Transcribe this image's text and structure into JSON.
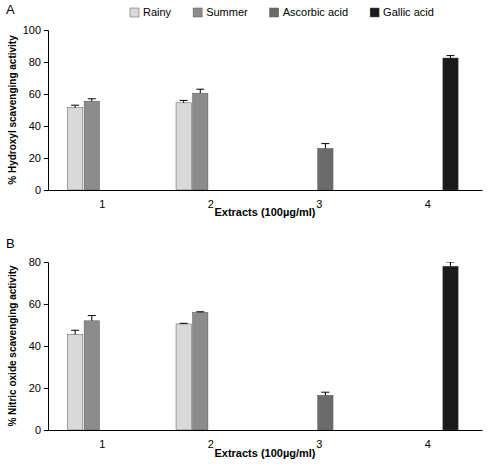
{
  "chart_data": [
    {
      "type": "bar",
      "title": "A",
      "x_label": "Extracts (100µg/ml)",
      "y_label": "% Hydroxyl scavenging activity",
      "categories": [
        "1",
        "2",
        "3",
        "4"
      ],
      "series": [
        {
          "name": "Rainy",
          "color": "#d9d9d9",
          "values": [
            51.5,
            54.5,
            null,
            null
          ],
          "errors": [
            1.5,
            1.5,
            null,
            null
          ]
        },
        {
          "name": "Summer",
          "color": "#8c8c8c",
          "values": [
            55.5,
            60.5,
            null,
            null
          ],
          "errors": [
            1.5,
            2.5,
            null,
            null
          ]
        },
        {
          "name": "Ascorbic acid",
          "color": "#6b6b6b",
          "values": [
            null,
            null,
            26,
            null
          ],
          "errors": [
            null,
            null,
            3,
            null
          ]
        },
        {
          "name": "Gallic acid",
          "color": "#1a1a1a",
          "values": [
            null,
            null,
            null,
            82.5
          ],
          "errors": [
            null,
            null,
            null,
            1.5
          ]
        }
      ],
      "ylim": [
        0,
        100
      ],
      "yticks": [
        0,
        20,
        40,
        60,
        80,
        100
      ],
      "grid": false,
      "legend": "top"
    },
    {
      "type": "bar",
      "title": "B",
      "x_label": "Extracts (100µg/ml)",
      "y_label": "% Nitric oxide scavenging activity",
      "categories": [
        "1",
        "2",
        "3",
        "4"
      ],
      "series": [
        {
          "color": "#d9d9d9",
          "values": [
            45.5,
            50.5,
            null,
            null
          ],
          "errors": [
            2,
            0.3,
            null,
            null
          ]
        },
        {
          "color": "#8c8c8c",
          "values": [
            52,
            56,
            null,
            null
          ],
          "errors": [
            2.5,
            0.3,
            null,
            null
          ]
        },
        {
          "color": "#6b6b6b",
          "values": [
            null,
            null,
            16.5,
            null
          ],
          "errors": [
            null,
            null,
            1.5,
            null
          ]
        },
        {
          "color": "#1a1a1a",
          "values": [
            null,
            null,
            null,
            78
          ],
          "errors": [
            null,
            null,
            null,
            2
          ]
        }
      ],
      "ylim": [
        0,
        80
      ],
      "yticks": [
        0,
        20,
        40,
        60,
        80
      ],
      "grid": false
    }
  ]
}
